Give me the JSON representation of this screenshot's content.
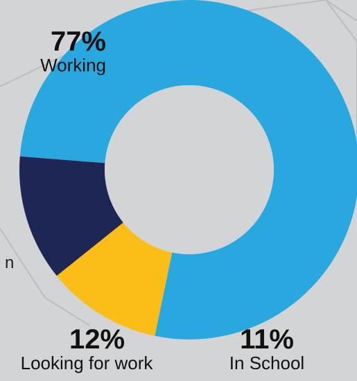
{
  "colors": {
    "background": "#d3d4d6",
    "hole": "#d3d4d6",
    "working": "#29a8e0",
    "looking": "#1e2656",
    "school": "#fbbd17",
    "text": "#111111"
  },
  "stray_text": "n",
  "chart_data": {
    "type": "pie",
    "donut": true,
    "title": "",
    "labels": [
      "Working",
      "In School",
      "Looking for work"
    ],
    "values": [
      77,
      11,
      12
    ],
    "value_labels": [
      "77%",
      "11%",
      "12%"
    ],
    "colors": [
      "#29a8e0",
      "#fbbd17",
      "#1e2656"
    ],
    "legend": "none"
  }
}
